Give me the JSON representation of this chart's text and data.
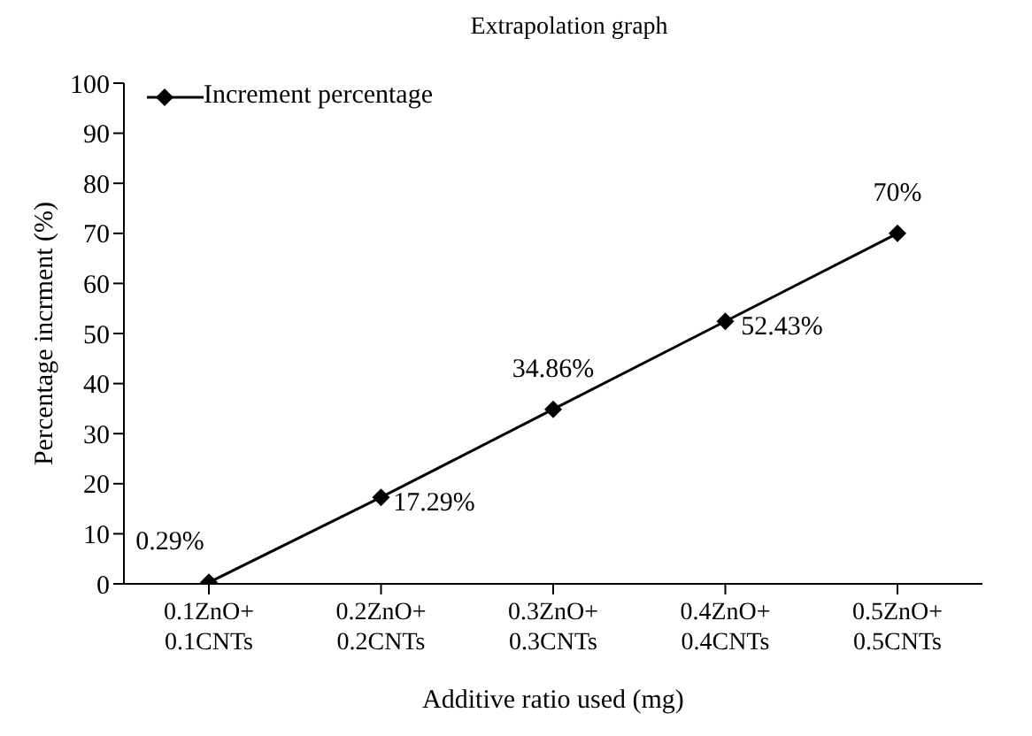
{
  "chart_data": {
    "type": "line",
    "title": "Extrapolation graph",
    "xlabel": "Additive ratio used (mg)",
    "ylabel": "Percentage incrment (%)",
    "categories": [
      "0.1ZnO+\n0.1CNTs",
      "0.2ZnO+\n0.2CNTs",
      "0.3ZnO+\n0.3CNTs",
      "0.4ZnO+\n0.4CNTs",
      "0.5ZnO+\n0.5CNTs"
    ],
    "series": [
      {
        "name": "Increment percentage",
        "color": "#000000",
        "values": [
          0.29,
          17.29,
          34.86,
          52.43,
          70
        ],
        "value_labels": [
          "0.29%",
          "17.29%",
          "34.86%",
          "52.43%",
          "70%"
        ]
      }
    ],
    "ylim": [
      0,
      100
    ],
    "yticks": [
      0,
      10,
      20,
      30,
      40,
      50,
      60,
      70,
      80,
      90,
      100
    ],
    "grid": false,
    "legend": "top left",
    "marker": "diamond",
    "line_style": "solid"
  }
}
